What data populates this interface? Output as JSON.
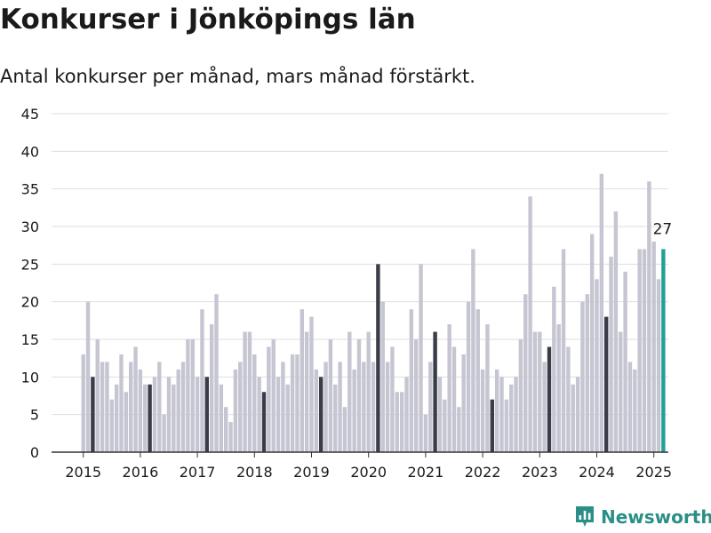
{
  "title": "Konkurser i Jönköpings län",
  "subtitle": "Antal konkurser per månad, mars månad förstärkt.",
  "brand": {
    "name": "Newsworthy"
  },
  "colors": {
    "default_bar": "#c5c6d2",
    "march_bar": "#3a3c48",
    "latest_bar": "#20a197",
    "grid": "#dedede",
    "text": "#1a1a1a",
    "brand": "#2a8f86"
  },
  "chart_data": {
    "type": "bar",
    "start": "2015-01",
    "x_tick_labels": [
      "2015",
      "2016",
      "2017",
      "2018",
      "2019",
      "2020",
      "2021",
      "2022",
      "2023",
      "2024",
      "2025"
    ],
    "ylim": [
      0,
      45
    ],
    "y_ticks": [
      0,
      5,
      10,
      15,
      20,
      25,
      30,
      35,
      40,
      45
    ],
    "grid": true,
    "highlight": "march",
    "last_value_label": "27",
    "values": [
      13,
      20,
      10,
      15,
      12,
      12,
      7,
      9,
      13,
      8,
      12,
      14,
      11,
      9,
      9,
      10,
      12,
      5,
      10,
      9,
      11,
      12,
      15,
      15,
      10,
      19,
      10,
      17,
      21,
      9,
      6,
      4,
      11,
      12,
      16,
      16,
      13,
      10,
      8,
      14,
      15,
      10,
      12,
      9,
      13,
      13,
      19,
      16,
      18,
      11,
      10,
      12,
      15,
      9,
      12,
      6,
      16,
      11,
      15,
      12,
      16,
      12,
      25,
      20,
      12,
      14,
      8,
      8,
      10,
      19,
      15,
      25,
      5,
      12,
      16,
      10,
      7,
      17,
      14,
      6,
      13,
      20,
      27,
      19,
      11,
      17,
      7,
      11,
      10,
      7,
      9,
      10,
      15,
      21,
      34,
      16,
      16,
      12,
      14,
      22,
      17,
      27,
      14,
      9,
      10,
      20,
      21,
      29,
      23,
      37,
      18,
      26,
      32,
      16,
      24,
      12,
      11,
      27,
      27,
      36,
      28,
      23,
      27
    ]
  }
}
